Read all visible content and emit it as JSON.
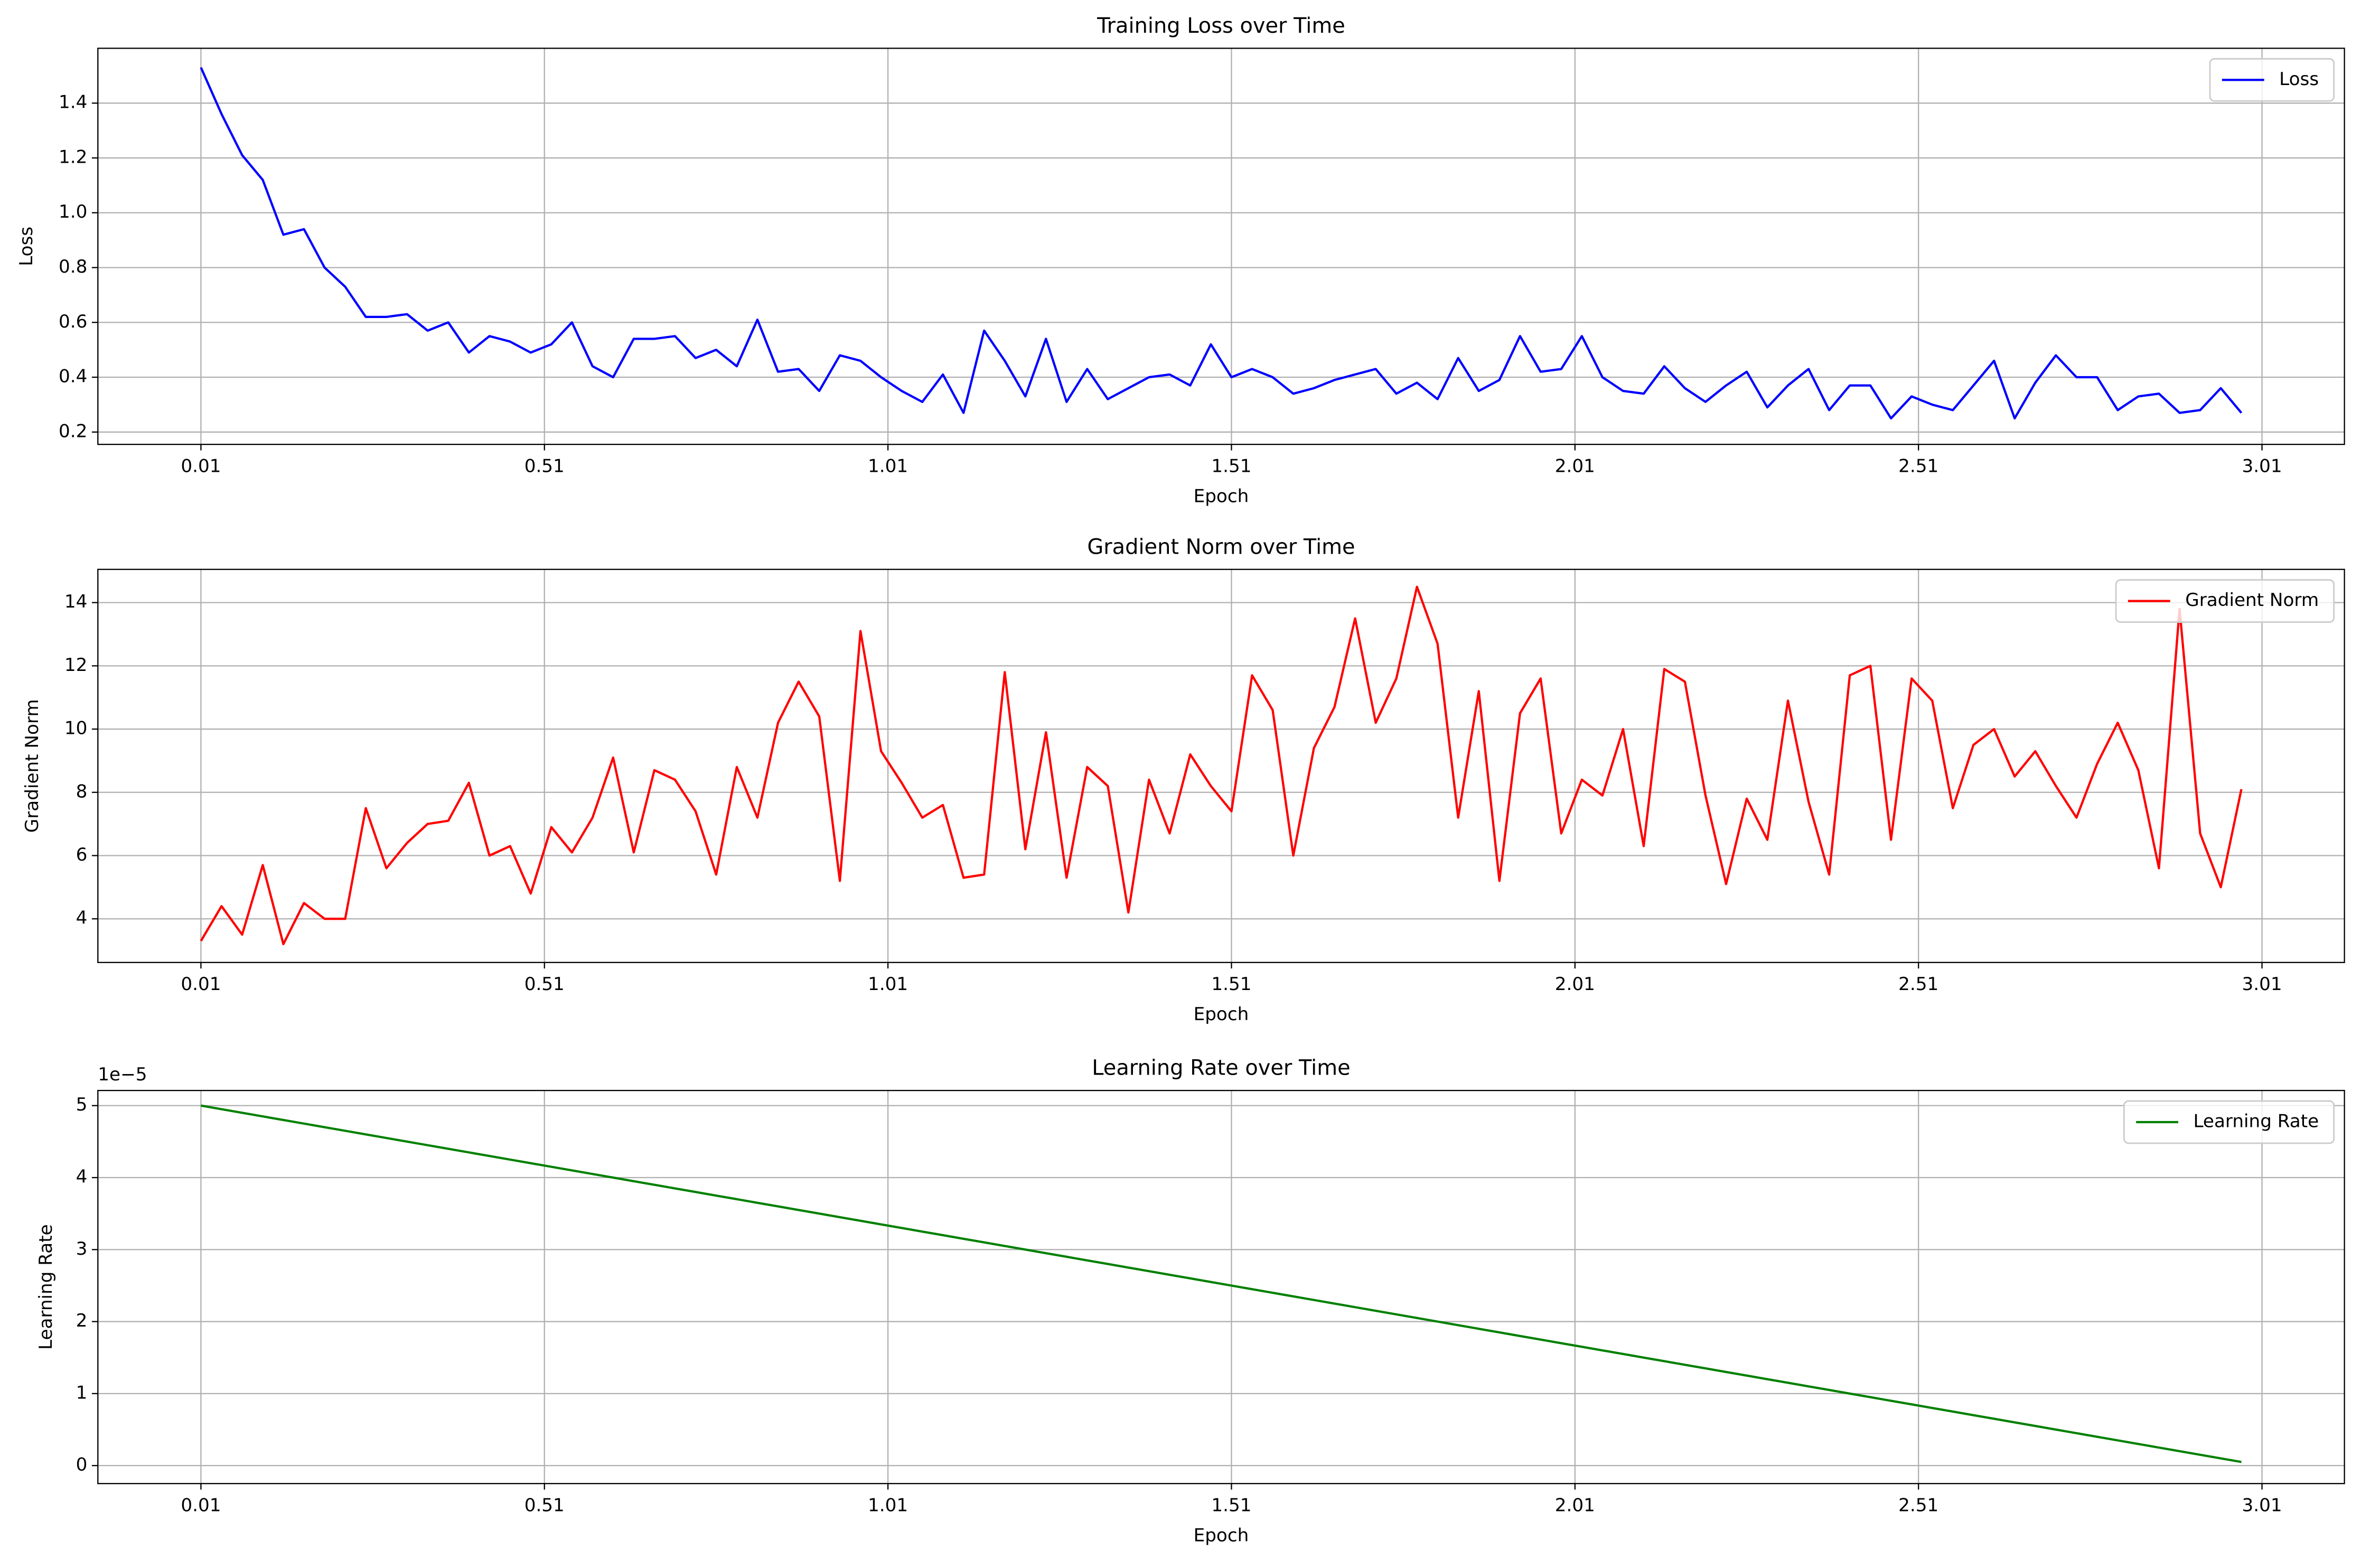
{
  "chart_data": [
    {
      "type": "line",
      "title": "Training Loss over Time",
      "x_label": "Epoch",
      "y_label": "Loss",
      "x": [
        0.01,
        0.04,
        0.07,
        0.1,
        0.13,
        0.16,
        0.19,
        0.22,
        0.25,
        0.28,
        0.31,
        0.34,
        0.37,
        0.4,
        0.43,
        0.46,
        0.49,
        0.52,
        0.55,
        0.58,
        0.61,
        0.64,
        0.67,
        0.7,
        0.73,
        0.76,
        0.79,
        0.82,
        0.85,
        0.88,
        0.91,
        0.94,
        0.97,
        1.0,
        1.03,
        1.06,
        1.09,
        1.12,
        1.15,
        1.18,
        1.21,
        1.24,
        1.27,
        1.3,
        1.33,
        1.36,
        1.39,
        1.42,
        1.45,
        1.48,
        1.51,
        1.54,
        1.57,
        1.6,
        1.63,
        1.66,
        1.69,
        1.72,
        1.75,
        1.78,
        1.81,
        1.84,
        1.87,
        1.9,
        1.93,
        1.96,
        1.99,
        2.02,
        2.05,
        2.08,
        2.11,
        2.14,
        2.17,
        2.2,
        2.23,
        2.26,
        2.29,
        2.32,
        2.35,
        2.38,
        2.41,
        2.44,
        2.47,
        2.5,
        2.53,
        2.56,
        2.59,
        2.62,
        2.65,
        2.68,
        2.71,
        2.74,
        2.77,
        2.8,
        2.83,
        2.86,
        2.89,
        2.92,
        2.95,
        2.98
      ],
      "series": [
        {
          "name": "Loss",
          "color": "#0000ff",
          "values": [
            1.53,
            1.36,
            1.21,
            1.12,
            0.92,
            0.94,
            0.8,
            0.73,
            0.62,
            0.62,
            0.63,
            0.57,
            0.6,
            0.49,
            0.55,
            0.53,
            0.49,
            0.52,
            0.6,
            0.44,
            0.4,
            0.54,
            0.54,
            0.55,
            0.47,
            0.5,
            0.44,
            0.61,
            0.42,
            0.43,
            0.35,
            0.48,
            0.46,
            0.4,
            0.35,
            0.31,
            0.41,
            0.27,
            0.57,
            0.46,
            0.33,
            0.54,
            0.31,
            0.43,
            0.32,
            0.36,
            0.4,
            0.41,
            0.37,
            0.52,
            0.4,
            0.43,
            0.4,
            0.34,
            0.36,
            0.39,
            0.41,
            0.43,
            0.34,
            0.38,
            0.32,
            0.47,
            0.35,
            0.39,
            0.55,
            0.42,
            0.43,
            0.55,
            0.4,
            0.35,
            0.34,
            0.44,
            0.36,
            0.31,
            0.37,
            0.42,
            0.29,
            0.37,
            0.43,
            0.28,
            0.37,
            0.37,
            0.25,
            0.33,
            0.3,
            0.28,
            0.37,
            0.46,
            0.25,
            0.38,
            0.48,
            0.4,
            0.4,
            0.28,
            0.33,
            0.34,
            0.27,
            0.28,
            0.36,
            0.27
          ]
        }
      ],
      "xlim": [
        -0.14,
        3.13
      ],
      "ylim": [
        0.155,
        1.6
      ],
      "xticks": [
        0.01,
        0.51,
        1.01,
        1.51,
        2.01,
        2.51,
        3.01
      ],
      "yticks": [
        0.2,
        0.4,
        0.6,
        0.8,
        {
          "value": 1,
          "label": "1.0"
        },
        1.2,
        1.4
      ],
      "grid": true,
      "legend": "upper right"
    },
    {
      "type": "line",
      "title": "Gradient Norm over Time",
      "x_label": "Epoch",
      "y_label": "Gradient Norm",
      "x": [
        0.01,
        0.04,
        0.07,
        0.1,
        0.13,
        0.16,
        0.19,
        0.22,
        0.25,
        0.28,
        0.31,
        0.34,
        0.37,
        0.4,
        0.43,
        0.46,
        0.49,
        0.52,
        0.55,
        0.58,
        0.61,
        0.64,
        0.67,
        0.7,
        0.73,
        0.76,
        0.79,
        0.82,
        0.85,
        0.88,
        0.91,
        0.94,
        0.97,
        1.0,
        1.03,
        1.06,
        1.09,
        1.12,
        1.15,
        1.18,
        1.21,
        1.24,
        1.27,
        1.3,
        1.33,
        1.36,
        1.39,
        1.42,
        1.45,
        1.48,
        1.51,
        1.54,
        1.57,
        1.6,
        1.63,
        1.66,
        1.69,
        1.72,
        1.75,
        1.78,
        1.81,
        1.84,
        1.87,
        1.9,
        1.93,
        1.96,
        1.99,
        2.02,
        2.05,
        2.08,
        2.11,
        2.14,
        2.17,
        2.2,
        2.23,
        2.26,
        2.29,
        2.32,
        2.35,
        2.38,
        2.41,
        2.44,
        2.47,
        2.5,
        2.53,
        2.56,
        2.59,
        2.62,
        2.65,
        2.68,
        2.71,
        2.74,
        2.77,
        2.8,
        2.83,
        2.86,
        2.89,
        2.92,
        2.95,
        2.98
      ],
      "series": [
        {
          "name": "Gradient Norm",
          "color": "#ff0000",
          "values": [
            3.3,
            4.4,
            3.5,
            5.7,
            3.2,
            4.5,
            4.0,
            4.0,
            7.5,
            5.6,
            6.4,
            7.0,
            7.1,
            8.3,
            6.0,
            6.3,
            4.8,
            6.9,
            6.1,
            7.2,
            9.1,
            6.1,
            8.7,
            8.4,
            7.4,
            5.4,
            8.8,
            7.2,
            10.2,
            11.5,
            10.4,
            5.2,
            13.1,
            9.3,
            8.3,
            7.2,
            7.6,
            5.3,
            5.4,
            11.8,
            6.2,
            9.9,
            5.3,
            8.8,
            8.2,
            4.2,
            8.4,
            6.7,
            9.2,
            8.2,
            7.4,
            11.7,
            10.6,
            6.0,
            9.4,
            10.7,
            13.5,
            10.2,
            11.6,
            14.5,
            12.7,
            7.2,
            11.2,
            5.2,
            10.5,
            11.6,
            6.7,
            8.4,
            7.9,
            10.0,
            6.3,
            11.9,
            11.5,
            7.9,
            5.1,
            7.8,
            6.5,
            10.9,
            7.7,
            5.4,
            11.7,
            12.0,
            6.5,
            11.6,
            10.9,
            7.5,
            9.5,
            10.0,
            8.5,
            9.3,
            8.2,
            7.2,
            8.9,
            10.2,
            8.7,
            5.6,
            13.8,
            6.7,
            5.0,
            8.1
          ]
        }
      ],
      "xlim": [
        -0.14,
        3.13
      ],
      "ylim": [
        2.62,
        15.05
      ],
      "xticks": [
        0.01,
        0.51,
        1.01,
        1.51,
        2.01,
        2.51,
        3.01
      ],
      "yticks": [
        4,
        6,
        8,
        10,
        12,
        14
      ],
      "grid": true,
      "legend": "upper right"
    },
    {
      "type": "line",
      "title": "Learning Rate over Time",
      "x_label": "Epoch",
      "y_label": "Learning Rate",
      "y_offset_label": "1e−5",
      "x": [
        0.01,
        0.04,
        0.07,
        0.1,
        0.13,
        0.16,
        0.19,
        0.22,
        0.25,
        0.28,
        0.31,
        0.34,
        0.37,
        0.4,
        0.43,
        0.46,
        0.49,
        0.52,
        0.55,
        0.58,
        0.61,
        0.64,
        0.67,
        0.7,
        0.73,
        0.76,
        0.79,
        0.82,
        0.85,
        0.88,
        0.91,
        0.94,
        0.97,
        1.0,
        1.03,
        1.06,
        1.09,
        1.12,
        1.15,
        1.18,
        1.21,
        1.24,
        1.27,
        1.3,
        1.33,
        1.36,
        1.39,
        1.42,
        1.45,
        1.48,
        1.51,
        1.54,
        1.57,
        1.6,
        1.63,
        1.66,
        1.69,
        1.72,
        1.75,
        1.78,
        1.81,
        1.84,
        1.87,
        1.9,
        1.93,
        1.96,
        1.99,
        2.02,
        2.05,
        2.08,
        2.11,
        2.14,
        2.17,
        2.2,
        2.23,
        2.26,
        2.29,
        2.32,
        2.35,
        2.38,
        2.41,
        2.44,
        2.47,
        2.5,
        2.53,
        2.56,
        2.59,
        2.62,
        2.65,
        2.68,
        2.71,
        2.74,
        2.77,
        2.8,
        2.83,
        2.86,
        2.89,
        2.92,
        2.95,
        2.98
      ],
      "series": [
        {
          "name": "Learning Rate",
          "color": "#008000",
          "values": [
            5e-05,
            4.95e-05,
            4.9e-05,
            4.85e-05,
            4.8e-05,
            4.75e-05,
            4.7e-05,
            4.65e-05,
            4.6e-05,
            4.55e-05,
            4.5e-05,
            4.45e-05,
            4.4e-05,
            4.35e-05,
            4.3e-05,
            4.25e-05,
            4.2e-05,
            4.15e-05,
            4.1e-05,
            4.05e-05,
            4e-05,
            3.95e-05,
            3.9e-05,
            3.85e-05,
            3.8e-05,
            3.75e-05,
            3.7e-05,
            3.65e-05,
            3.6e-05,
            3.55e-05,
            3.5e-05,
            3.45e-05,
            3.4e-05,
            3.35e-05,
            3.3e-05,
            3.25e-05,
            3.2e-05,
            3.15e-05,
            3.1e-05,
            3.05e-05,
            3e-05,
            2.95e-05,
            2.9e-05,
            2.85e-05,
            2.8e-05,
            2.75e-05,
            2.7e-05,
            2.65e-05,
            2.6e-05,
            2.55e-05,
            2.5e-05,
            2.45e-05,
            2.4e-05,
            2.35e-05,
            2.3e-05,
            2.25e-05,
            2.2e-05,
            2.15e-05,
            2.1e-05,
            2.05e-05,
            2e-05,
            1.95e-05,
            1.9e-05,
            1.85e-05,
            1.8e-05,
            1.75e-05,
            1.7e-05,
            1.65e-05,
            1.6e-05,
            1.55e-05,
            1.5e-05,
            1.45e-05,
            1.4e-05,
            1.35e-05,
            1.3e-05,
            1.25e-05,
            1.2e-05,
            1.15e-05,
            1.1e-05,
            1.05e-05,
            1e-05,
            9.5e-06,
            9e-06,
            8.5e-06,
            8e-06,
            7.5e-06,
            7e-06,
            6.5e-06,
            6e-06,
            5.5e-06,
            5e-06,
            4.5e-06,
            4e-06,
            3.5e-06,
            3e-06,
            2.5e-06,
            2e-06,
            1.5e-06,
            1e-06,
            5e-07
          ]
        }
      ],
      "xlim": [
        -0.14,
        3.13
      ],
      "ylim": [
        -2.5e-06,
        5.21e-05
      ],
      "xticks": [
        0.01,
        0.51,
        1.01,
        1.51,
        2.01,
        2.51,
        3.01
      ],
      "yticks": [
        0,
        {
          "value": 1e-05,
          "label": "1"
        },
        {
          "value": 2e-05,
          "label": "2"
        },
        {
          "value": 3e-05,
          "label": "3"
        },
        {
          "value": 4e-05,
          "label": "4"
        },
        {
          "value": 5e-05,
          "label": "5"
        }
      ],
      "grid": true,
      "legend": "upper right"
    }
  ]
}
